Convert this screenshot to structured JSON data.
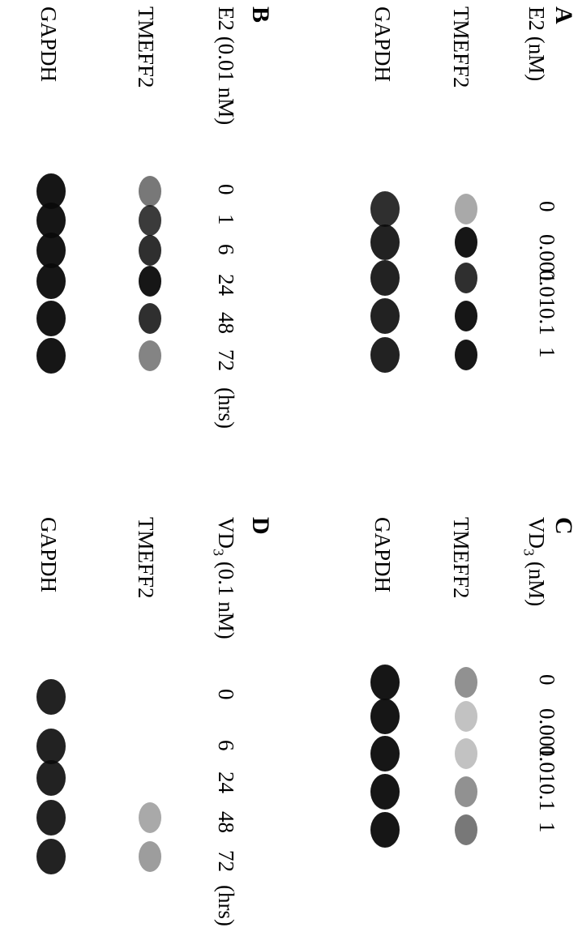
{
  "panels": {
    "A": {
      "letter": "A",
      "treatment": "E2 (nM)",
      "genes": [
        "TMEFF2",
        "GAPDH"
      ],
      "lanes": [
        "0",
        "0.001",
        "0.01",
        "0.1",
        "1"
      ]
    },
    "B": {
      "letter": "B",
      "treatment": "E2 (0.01 nM)",
      "genes": [
        "TMEFF2",
        "GAPDH"
      ],
      "lanes": [
        "0",
        "1",
        "6",
        "24",
        "48",
        "72"
      ],
      "unit": "(hrs)"
    },
    "C": {
      "letter": "C",
      "treatment_main": "VD",
      "treatment_sub": "3",
      "treatment_rest": " (nM)",
      "genes": [
        "TMEFF2",
        "GAPDH"
      ],
      "lanes": [
        "0",
        "0.001",
        "0.01",
        "0.1",
        "1"
      ]
    },
    "D": {
      "letter": "D",
      "treatment_main": "VD",
      "treatment_sub": "3",
      "treatment_rest": " (0.1 nM)",
      "genes": [
        "TMEFF2",
        "GAPDH"
      ],
      "lanes": [
        "0",
        "6",
        "24",
        "48",
        "72"
      ],
      "unit": "(hrs)"
    }
  },
  "band_intensity": {
    "A": {
      "TMEFF2": [
        0.35,
        0.95,
        0.85,
        0.95,
        0.95
      ],
      "GAPDH": [
        0.85,
        0.9,
        0.9,
        0.9,
        0.9
      ]
    },
    "B": {
      "TMEFF2": [
        0.55,
        0.8,
        0.85,
        0.95,
        0.85,
        0.5
      ],
      "GAPDH": [
        0.95,
        0.95,
        0.95,
        0.95,
        0.95,
        0.95
      ]
    },
    "C": {
      "TMEFF2": [
        0.45,
        0.25,
        0.25,
        0.45,
        0.55
      ],
      "GAPDH": [
        0.95,
        0.95,
        0.95,
        0.95,
        0.95
      ]
    },
    "D": {
      "TMEFF2": [
        0.0,
        0.0,
        0.0,
        0.35,
        0.4
      ],
      "GAPDH": [
        0.9,
        0.9,
        0.9,
        0.9,
        0.9
      ]
    }
  },
  "colors": {
    "band": "#0a0a0a",
    "background": "#ffffff"
  }
}
